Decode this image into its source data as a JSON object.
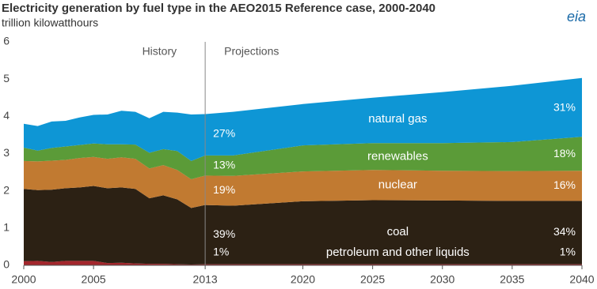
{
  "chart_data": {
    "type": "stacked_area",
    "title": "Electricity generation by fuel type in the AEO2015  Reference case, 2000-2040",
    "subtitle": "trillion kilowatthours",
    "logo": "eia",
    "history_label": "History",
    "projections_label": "Projections",
    "divider_x": 2013,
    "x": [
      2000,
      2001,
      2002,
      2003,
      2004,
      2005,
      2006,
      2007,
      2008,
      2009,
      2010,
      2011,
      2012,
      2013,
      2015,
      2020,
      2025,
      2030,
      2035,
      2040
    ],
    "xlim": [
      2000,
      2040
    ],
    "xticks": [
      2000,
      2005,
      2013,
      2020,
      2025,
      2030,
      2035,
      2040
    ],
    "ylim": [
      0,
      6
    ],
    "yticks": [
      0,
      1,
      2,
      3,
      4,
      5,
      6
    ],
    "series": [
      {
        "name": "petroleum  and other liquids",
        "color": "#a3262c",
        "share_labels": [
          "1%",
          "1%"
        ],
        "values": [
          0.11,
          0.12,
          0.09,
          0.12,
          0.12,
          0.12,
          0.06,
          0.07,
          0.05,
          0.04,
          0.04,
          0.03,
          0.02,
          0.03,
          0.03,
          0.03,
          0.03,
          0.03,
          0.03,
          0.03
        ]
      },
      {
        "name": "coal",
        "color": "#2c2114",
        "share_labels": [
          "39%",
          "34%"
        ],
        "values": [
          1.94,
          1.9,
          1.94,
          1.95,
          1.97,
          2.01,
          2.01,
          2.02,
          2.0,
          1.76,
          1.84,
          1.74,
          1.52,
          1.59,
          1.57,
          1.69,
          1.72,
          1.71,
          1.7,
          1.7
        ]
      },
      {
        "name": "nuclear",
        "color": "#c17a31",
        "share_labels": [
          "19%",
          "16%"
        ],
        "values": [
          0.75,
          0.77,
          0.78,
          0.76,
          0.79,
          0.78,
          0.79,
          0.81,
          0.81,
          0.8,
          0.81,
          0.79,
          0.77,
          0.79,
          0.8,
          0.8,
          0.81,
          0.8,
          0.8,
          0.81
        ]
      },
      {
        "name": "renewables",
        "color": "#5b9b38",
        "share_labels": [
          "13%",
          "18%"
        ],
        "values": [
          0.36,
          0.29,
          0.34,
          0.36,
          0.35,
          0.36,
          0.39,
          0.35,
          0.38,
          0.42,
          0.43,
          0.51,
          0.49,
          0.54,
          0.55,
          0.7,
          0.72,
          0.74,
          0.78,
          0.91
        ]
      },
      {
        "name": "natural gas",
        "color": "#0e96d5",
        "share_labels": [
          "27%",
          "31%"
        ],
        "values": [
          0.64,
          0.66,
          0.71,
          0.69,
          0.74,
          0.77,
          0.8,
          0.9,
          0.88,
          0.93,
          1.0,
          1.03,
          1.25,
          1.11,
          1.17,
          1.11,
          1.22,
          1.37,
          1.51,
          1.58
        ]
      }
    ]
  }
}
